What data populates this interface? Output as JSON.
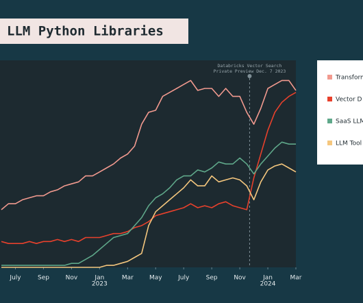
{
  "chart_data": {
    "type": "line",
    "title": "LLM Python Libraries",
    "annotation": [
      "Databricks Vector Search",
      "Private Preview Dec. 7 2023"
    ],
    "annotation_x": 22.7,
    "x": [
      5,
      5.5,
      6,
      6.5,
      7,
      7.5,
      8,
      8.5,
      9,
      9.5,
      10,
      10.5,
      11,
      11.5,
      12,
      12.5,
      13,
      13.5,
      14,
      14.5,
      15,
      15.5,
      16,
      16.5,
      17,
      17.5,
      18,
      18.5,
      19,
      19.5,
      20,
      20.5,
      21,
      21.5,
      22,
      22.5,
      23,
      23.5,
      24,
      24.5,
      25,
      25.5,
      26
    ],
    "xlim": [
      4.9,
      26
    ],
    "xticks": [
      {
        "value": 6,
        "label": "July"
      },
      {
        "value": 8,
        "label": "Sep"
      },
      {
        "value": 10,
        "label": "Nov"
      },
      {
        "value": 12,
        "label": "Jan"
      },
      {
        "value": 14,
        "label": "Mar"
      },
      {
        "value": 16,
        "label": "May"
      },
      {
        "value": 18,
        "label": "July"
      },
      {
        "value": 20,
        "label": "Sep"
      },
      {
        "value": 22,
        "label": "Nov"
      },
      {
        "value": 24,
        "label": "Jan"
      },
      {
        "value": 26,
        "label": "Mar"
      }
    ],
    "x_year_labels": [
      {
        "value": 12,
        "label": "2023"
      },
      {
        "value": 24,
        "label": "2024"
      }
    ],
    "ylim": [
      0,
      100
    ],
    "series": [
      {
        "name": "Transform",
        "color": "#f29a8f",
        "values": [
          29,
          32,
          32,
          34,
          35,
          36,
          36,
          38,
          39,
          41,
          42,
          43,
          46,
          46,
          48,
          50,
          52,
          55,
          57,
          61,
          72,
          78,
          79,
          86,
          88,
          90,
          92,
          94,
          89,
          90,
          90,
          86,
          90,
          86,
          86,
          78,
          72,
          80,
          90,
          92,
          94,
          94,
          89
        ]
      },
      {
        "name": "Vector D",
        "color": "#e8412c",
        "values": [
          13,
          12,
          12,
          12,
          13,
          12,
          13,
          13,
          14,
          13,
          14,
          13,
          15,
          15,
          15,
          16,
          17,
          17,
          18,
          20,
          21,
          23,
          26,
          27,
          28,
          29,
          30,
          32,
          30,
          31,
          30,
          32,
          33,
          31,
          30,
          29,
          45,
          57,
          69,
          78,
          83,
          86,
          88
        ]
      },
      {
        "name": "SaaS LLM",
        "color": "#5fa88a",
        "values": [
          1,
          1,
          1,
          1,
          1,
          1,
          1,
          1,
          1,
          1,
          2,
          2,
          4,
          6,
          9,
          12,
          15,
          16,
          17,
          21,
          25,
          31,
          35,
          37,
          40,
          44,
          46,
          46,
          49,
          48,
          50,
          53,
          52,
          52,
          55,
          52,
          47,
          52,
          56,
          60,
          63,
          62,
          62
        ]
      },
      {
        "name": "LLM Tool",
        "color": "#f5c77e",
        "values": [
          0,
          0,
          0,
          0,
          0,
          0,
          0,
          0,
          0,
          0,
          0,
          0,
          0,
          0,
          0,
          1,
          1,
          2,
          3,
          5,
          7,
          21,
          28,
          31,
          34,
          37,
          40,
          44,
          41,
          41,
          46,
          43,
          44,
          45,
          44,
          41,
          34,
          43,
          49,
          51,
          52,
          50,
          48
        ]
      }
    ]
  }
}
